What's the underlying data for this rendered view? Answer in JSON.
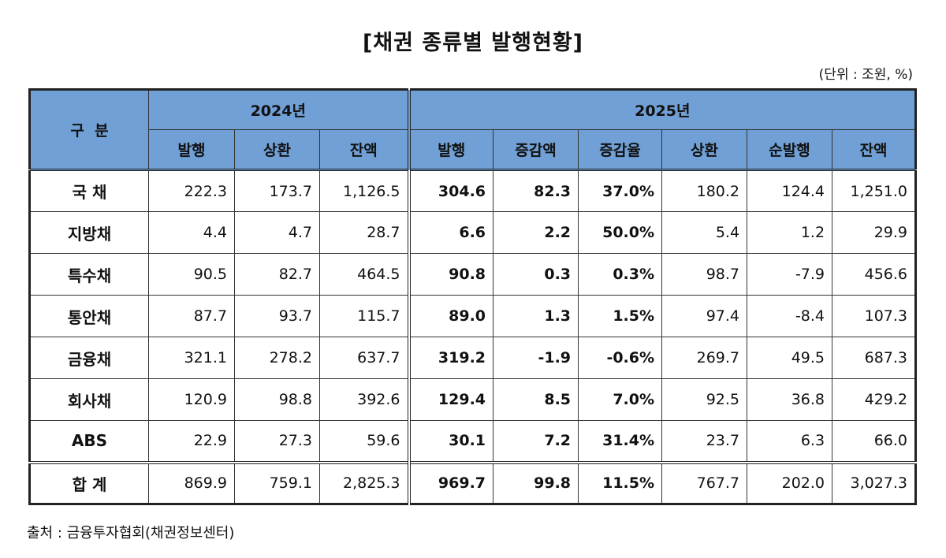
{
  "title": "[채권 종류별 발행현황]",
  "unit": "(단위 : 조원, %)",
  "source": "출처 : 금융투자협회(채권정보센터)",
  "colors": {
    "header_bg": "#70a0d5"
  },
  "table": {
    "category_header": "구  분",
    "groups": [
      "2024년",
      "2025년"
    ],
    "columns_2024": [
      "발행",
      "상환",
      "잔액"
    ],
    "columns_2025": [
      "발행",
      "증감액",
      "증감율",
      "상환",
      "순발행",
      "잔액"
    ],
    "rows": [
      {
        "label": "국 채",
        "values": [
          "222.3",
          "173.7",
          "1,126.5",
          "304.6",
          "82.3",
          "37.0%",
          "180.2",
          "124.4",
          "1,251.0"
        ]
      },
      {
        "label": "지방채",
        "values": [
          "4.4",
          "4.7",
          "28.7",
          "6.6",
          "2.2",
          "50.0%",
          "5.4",
          "1.2",
          "29.9"
        ]
      },
      {
        "label": "특수채",
        "values": [
          "90.5",
          "82.7",
          "464.5",
          "90.8",
          "0.3",
          "0.3%",
          "98.7",
          "-7.9",
          "456.6"
        ]
      },
      {
        "label": "통안채",
        "values": [
          "87.7",
          "93.7",
          "115.7",
          "89.0",
          "1.3",
          "1.5%",
          "97.4",
          "-8.4",
          "107.3"
        ]
      },
      {
        "label": "금융채",
        "values": [
          "321.1",
          "278.2",
          "637.7",
          "319.2",
          "-1.9",
          "-0.6%",
          "269.7",
          "49.5",
          "687.3"
        ]
      },
      {
        "label": "회사채",
        "values": [
          "120.9",
          "98.8",
          "392.6",
          "129.4",
          "8.5",
          "7.0%",
          "92.5",
          "36.8",
          "429.2"
        ]
      },
      {
        "label": "ABS",
        "values": [
          "22.9",
          "27.3",
          "59.6",
          "30.1",
          "7.2",
          "31.4%",
          "23.7",
          "6.3",
          "66.0"
        ]
      }
    ],
    "total": {
      "label": "합 계",
      "values": [
        "869.9",
        "759.1",
        "2,825.3",
        "969.7",
        "99.8",
        "11.5%",
        "767.7",
        "202.0",
        "3,027.3"
      ]
    }
  }
}
